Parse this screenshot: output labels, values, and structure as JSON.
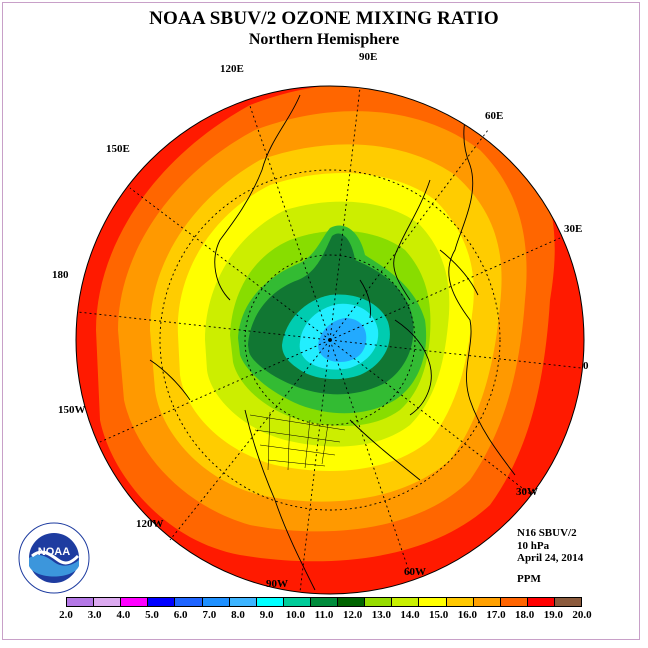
{
  "header": {
    "title": "NOAA SBUV/2 OZONE MIXING RATIO",
    "subtitle": "Northern Hemisphere"
  },
  "map": {
    "projection": "north polar stereographic",
    "longitude_labels": [
      "90E",
      "60E",
      "30E",
      "0",
      "30W",
      "60W",
      "90W",
      "120W",
      "150W",
      "180",
      "150E",
      "120E"
    ],
    "contour_bands_ppm": [
      {
        "range": "18.0-19.0",
        "color": "#ff1a00"
      },
      {
        "range": "17.0-18.0",
        "color": "#ff6600"
      },
      {
        "range": "16.0-17.0",
        "color": "#ff9900"
      },
      {
        "range": "15.0-16.0",
        "color": "#ffcc00"
      },
      {
        "range": "14.0-15.0",
        "color": "#ffff00"
      },
      {
        "range": "13.0-14.0",
        "color": "#ccee00"
      },
      {
        "range": "12.0-13.0",
        "color": "#88dd00"
      },
      {
        "range": "11.0-12.0",
        "color": "#33bb33"
      },
      {
        "range": "10.0-11.0",
        "color": "#117733"
      },
      {
        "range": "9.0-10.0",
        "color": "#00ccb0"
      },
      {
        "range": "8.0-9.0",
        "color": "#22eeff"
      },
      {
        "range": "7.0-8.0",
        "color": "#22aaff"
      }
    ]
  },
  "info": {
    "instrument": "N16 SBUV/2",
    "level": "10 hPa",
    "date": "April 24, 2014",
    "units": "PPM"
  },
  "colorbar": {
    "colors": [
      "#b478e6",
      "#dcaaf0",
      "#ff00ff",
      "#0000ff",
      "#1e64ff",
      "#1e90ff",
      "#3cb4ff",
      "#00ffff",
      "#00cc99",
      "#008c3c",
      "#006400",
      "#96dc00",
      "#c8f000",
      "#ffff00",
      "#ffc800",
      "#ffa000",
      "#ff6400",
      "#ff0000",
      "#8b5a3c"
    ],
    "tick_labels": [
      "2.0",
      "3.0",
      "4.0",
      "5.0",
      "6.0",
      "7.0",
      "8.0",
      "9.0",
      "10.0",
      "11.0",
      "12.0",
      "13.0",
      "14.0",
      "15.0",
      "16.0",
      "17.0",
      "18.0",
      "19.0",
      "20.0"
    ]
  },
  "logo": {
    "text": "NOAA",
    "ring_text": "NATIONAL OCEANIC AND ATMOSPHERIC ADMINISTRATION · U.S. DEPARTMENT OF COMMERCE"
  }
}
